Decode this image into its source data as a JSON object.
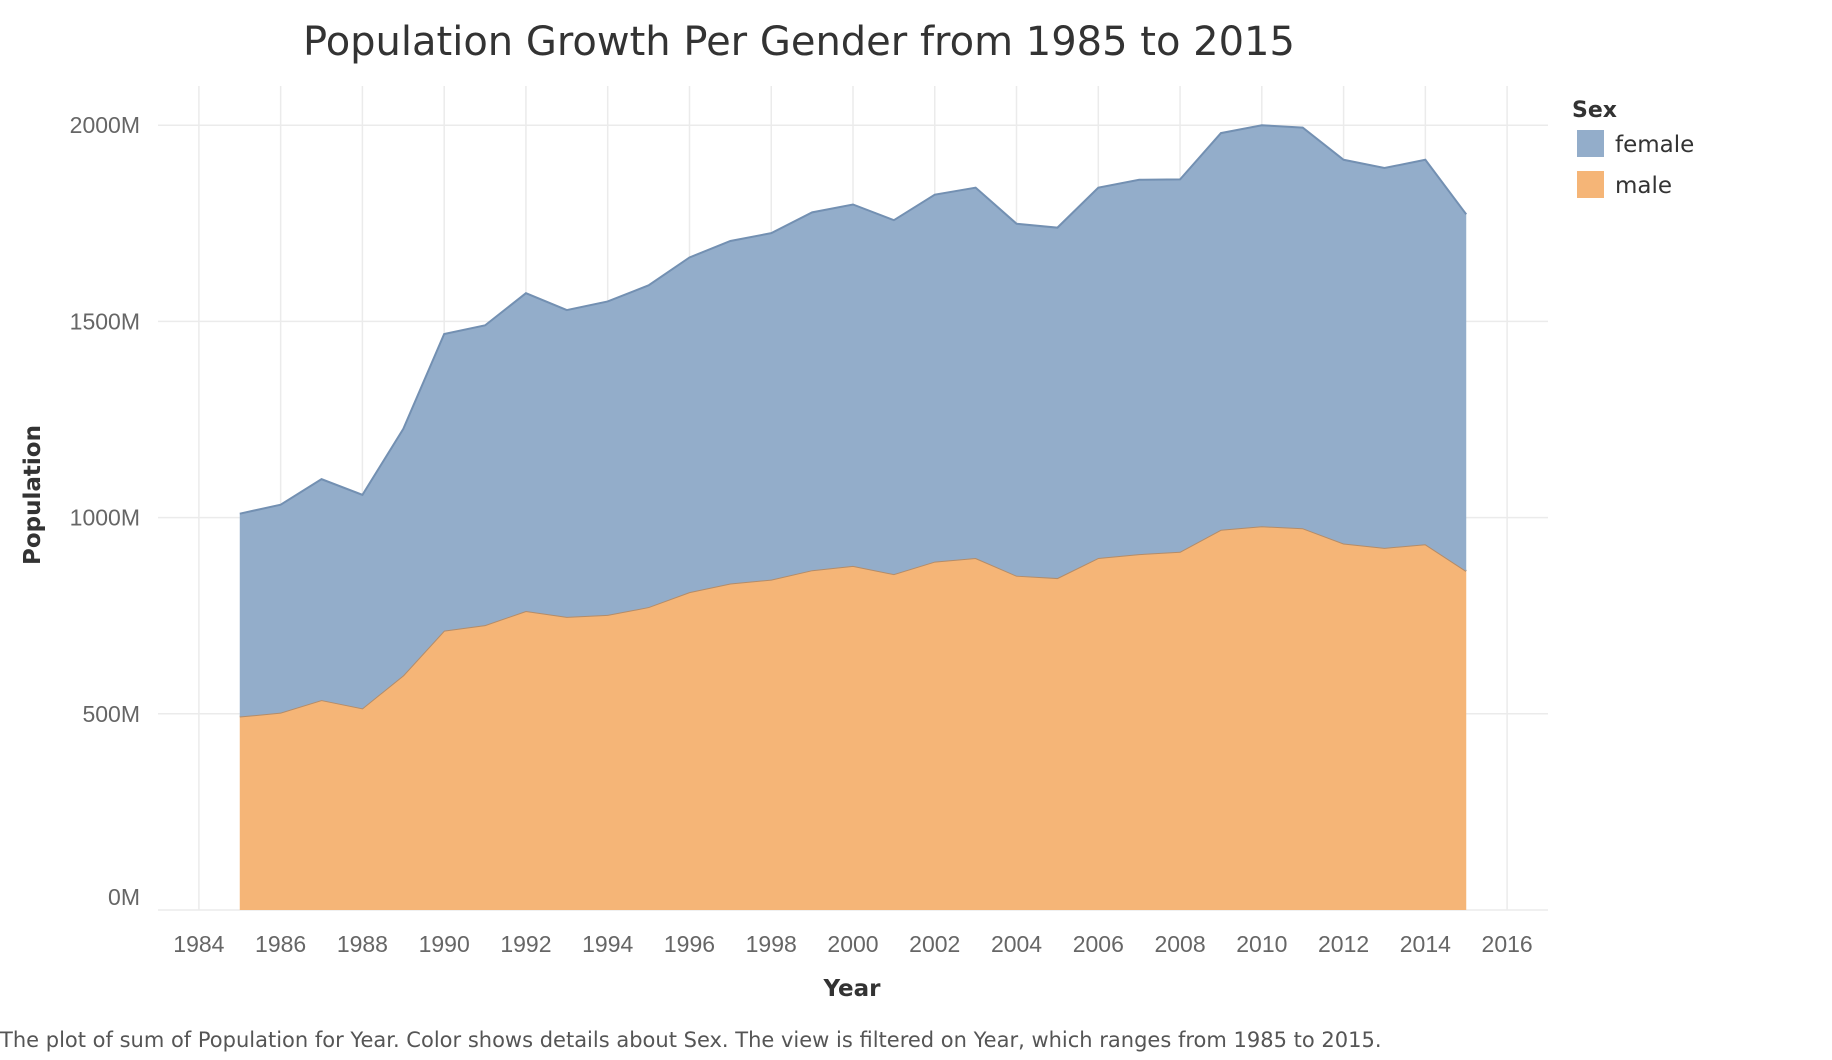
{
  "chart_data": {
    "type": "area",
    "stacked": true,
    "title": "Population Growth Per Gender from 1985 to 2015",
    "xlabel": "Year",
    "ylabel": "Population",
    "xlim": [
      1983,
      2017
    ],
    "ylim": [
      0,
      2100
    ],
    "y_unit_suffix": "M",
    "x_ticks": [
      1984,
      1986,
      1988,
      1990,
      1992,
      1994,
      1996,
      1998,
      2000,
      2002,
      2004,
      2006,
      2008,
      2010,
      2012,
      2014,
      2016
    ],
    "y_ticks": [
      0,
      500,
      1000,
      1500,
      2000
    ],
    "y_tick_labels": [
      "0M",
      "500M",
      "1000M",
      "1500M",
      "2000M"
    ],
    "grid": true,
    "legend": {
      "title": "Sex",
      "position": "top-right"
    },
    "x": [
      1985,
      1986,
      1987,
      1988,
      1989,
      1990,
      1991,
      1992,
      1993,
      1994,
      1995,
      1996,
      1997,
      1998,
      1999,
      2000,
      2001,
      2002,
      2003,
      2004,
      2005,
      2006,
      2007,
      2008,
      2009,
      2010,
      2011,
      2012,
      2013,
      2014,
      2015
    ],
    "series": [
      {
        "name": "male",
        "color": "#f5b577",
        "stroke": "#b48c68",
        "values": [
          493,
          503,
          535,
          514,
          598,
          712,
          726,
          762,
          747,
          752,
          772,
          810,
          832,
          842,
          866,
          877,
          856,
          888,
          897,
          852,
          846,
          897,
          907,
          913,
          969,
          978,
          973,
          934,
          923,
          932,
          864
        ]
      },
      {
        "name": "female",
        "color": "#93adca",
        "stroke": "#7390b2",
        "values": [
          517,
          530,
          563,
          544,
          628,
          756,
          764,
          810,
          782,
          799,
          820,
          853,
          873,
          883,
          912,
          921,
          902,
          935,
          944,
          897,
          893,
          944,
          954,
          949,
          1011,
          1022,
          1021,
          978,
          968,
          980,
          909
        ]
      }
    ],
    "caption": "The plot of sum of Population for Year.  Color shows details about Sex. The view is filtered on Year, which ranges from 1985 to 2015."
  }
}
